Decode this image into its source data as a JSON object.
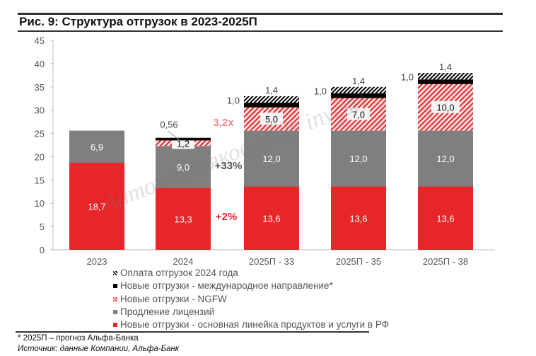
{
  "title": "Рис. 9: Структура отгрузок в 2023-2025П",
  "footnote": "* 2025П – прогноз Альфа-Банка",
  "source": "Источник: данные Компании, Альфа-Банк",
  "watermark": "Антон Поляков (poly invest)",
  "chart_data": {
    "type": "bar",
    "stacked": true,
    "categories": [
      "2023",
      "2024",
      "2025П - 33",
      "2025П - 35",
      "2025П - 38"
    ],
    "ylim": [
      0,
      45
    ],
    "yticks": [
      "0",
      "5",
      "10",
      "15",
      "20",
      "25",
      "30",
      "35",
      "40",
      "45"
    ],
    "grid": false,
    "legend_position": "bottom",
    "series": [
      {
        "name": "Новые отгрузки - основная линейка продуктов и услуги в РФ",
        "color": "#e8262a",
        "pattern": "solid",
        "values": [
          18.7,
          13.3,
          13.6,
          13.6,
          13.6
        ],
        "labels": [
          "18,7",
          "13,3",
          "13,6",
          "13,6",
          "13,6"
        ]
      },
      {
        "name": "Продление лицензий",
        "color": "#7f7f7f",
        "pattern": "solid",
        "values": [
          6.9,
          9.0,
          12.0,
          12.0,
          12.0
        ],
        "labels": [
          "6,9",
          "9,0",
          "12,0",
          "12,0",
          "12,0"
        ]
      },
      {
        "name": "Новые отгрузки - NGFW",
        "color": "#e8262a",
        "pattern": "hatch",
        "values": [
          0,
          1.2,
          5.0,
          7.0,
          10.0
        ],
        "labels": [
          "",
          "1,2",
          "5,0",
          "7,0",
          "10,0"
        ]
      },
      {
        "name": "Новые отгрузки - международное направление*",
        "color": "#000000",
        "pattern": "solid",
        "values": [
          0,
          0.56,
          1.0,
          1.0,
          1.0
        ],
        "labels": [
          "",
          "0,56",
          "1,0",
          "1,0",
          "1,0"
        ]
      },
      {
        "name": "Оплата отгрузок 2024 года",
        "color": "#000000",
        "pattern": "hatch",
        "values": [
          0,
          0,
          1.4,
          1.4,
          1.4
        ],
        "labels": [
          "",
          "",
          "1,4",
          "1,4",
          "1,4"
        ]
      }
    ],
    "annotations": [
      {
        "text": "+2%",
        "color": "#e8262a"
      },
      {
        "text": "+33%",
        "color": "#555555"
      },
      {
        "text": "3,2x",
        "color": "#f08a8a"
      }
    ]
  }
}
